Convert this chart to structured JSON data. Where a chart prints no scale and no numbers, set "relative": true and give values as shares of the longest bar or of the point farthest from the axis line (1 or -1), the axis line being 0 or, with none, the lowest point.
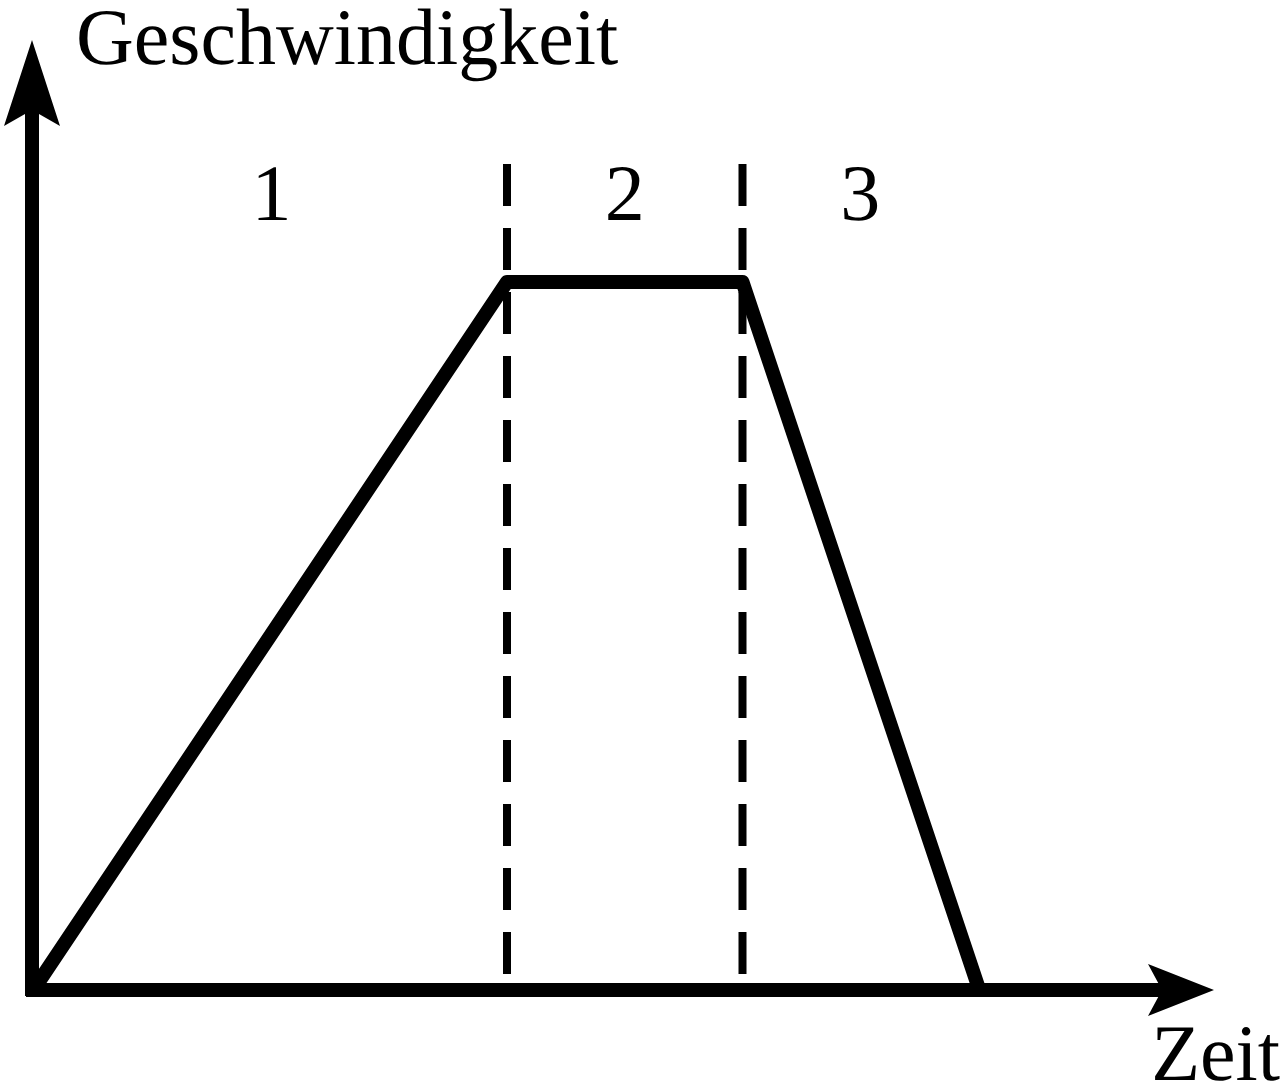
{
  "chart_data": {
    "type": "line",
    "relative": true,
    "categories": [
      null,
      null,
      null,
      null,
      null
    ],
    "series": [
      {
        "color": "#000000",
        "values": [
          0,
          0.5,
          1,
          1,
          0
        ]
      }
    ],
    "xlabel": "Zeit",
    "ylabel": "Geschwindigkeit",
    "annotations": [
      "1",
      "2",
      "3"
    ],
    "marker": "none",
    "tick_labels": false,
    "legend": false
  }
}
